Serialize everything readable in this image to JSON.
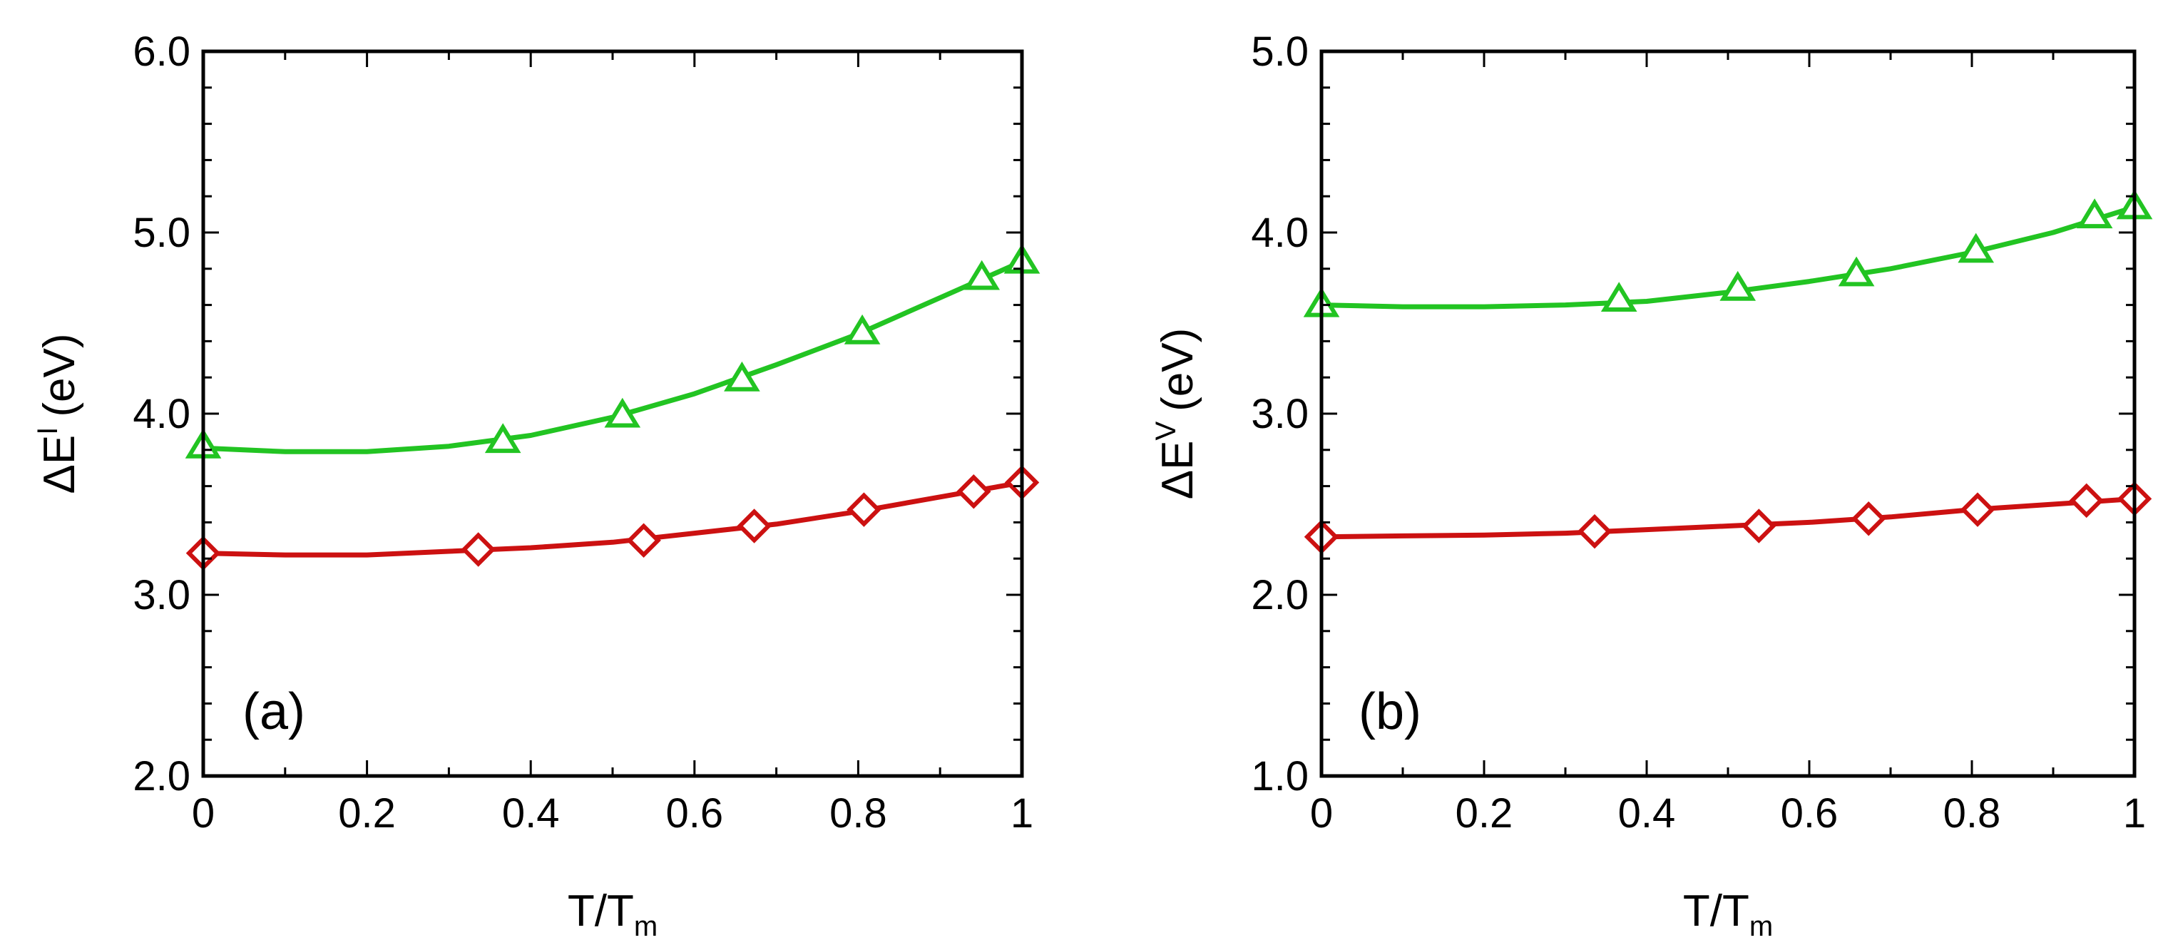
{
  "chart_data": [
    {
      "type": "line",
      "panel_label": "(a)",
      "ylabel": "ΔE",
      "ylabel_superscript": "I",
      "ylabel_units": "(eV)",
      "xlabel": "T/T",
      "xlabel_subscript": "m",
      "xlim": [
        0,
        1
      ],
      "ylim": [
        2.0,
        6.0
      ],
      "xticks": [
        "0",
        "0.2",
        "0.4",
        "0.6",
        "0.8",
        "1"
      ],
      "yticks": [
        "2.0",
        "3.0",
        "4.0",
        "5.0",
        "6.0"
      ],
      "grid": false,
      "series": [
        {
          "name": "triangle series",
          "color": "#22c422",
          "marker": "triangle",
          "x": [
            0.0,
            0.366,
            0.512,
            0.658,
            0.805,
            0.951,
            1.0
          ],
          "y": [
            3.82,
            3.85,
            3.99,
            4.19,
            4.45,
            4.75,
            4.84
          ],
          "curve": [
            [
              0.0,
              3.81
            ],
            [
              0.1,
              3.79
            ],
            [
              0.2,
              3.79
            ],
            [
              0.3,
              3.82
            ],
            [
              0.4,
              3.88
            ],
            [
              0.5,
              3.98
            ],
            [
              0.6,
              4.11
            ],
            [
              0.7,
              4.27
            ],
            [
              0.8,
              4.44
            ],
            [
              0.9,
              4.64
            ],
            [
              1.0,
              4.84
            ]
          ]
        },
        {
          "name": "diamond series",
          "color": "#cc1111",
          "marker": "diamond",
          "x": [
            0.0,
            0.336,
            0.538,
            0.673,
            0.807,
            0.941,
            1.0
          ],
          "y": [
            3.23,
            3.25,
            3.3,
            3.38,
            3.47,
            3.57,
            3.62
          ],
          "curve": [
            [
              0.0,
              3.23
            ],
            [
              0.1,
              3.22
            ],
            [
              0.2,
              3.22
            ],
            [
              0.3,
              3.24
            ],
            [
              0.4,
              3.26
            ],
            [
              0.5,
              3.29
            ],
            [
              0.6,
              3.34
            ],
            [
              0.7,
              3.39
            ],
            [
              0.8,
              3.46
            ],
            [
              0.9,
              3.54
            ],
            [
              1.0,
              3.62
            ]
          ]
        }
      ]
    },
    {
      "type": "line",
      "panel_label": "(b)",
      "ylabel": "ΔE",
      "ylabel_superscript": "V",
      "ylabel_units": "(eV)",
      "xlabel": "T/T",
      "xlabel_subscript": "m",
      "xlim": [
        0,
        1
      ],
      "ylim": [
        1.0,
        5.0
      ],
      "xticks": [
        "0",
        "0.2",
        "0.4",
        "0.6",
        "0.8",
        "1"
      ],
      "yticks": [
        "1.0",
        "2.0",
        "3.0",
        "4.0",
        "5.0"
      ],
      "grid": false,
      "series": [
        {
          "name": "triangle series",
          "color": "#22c422",
          "marker": "triangle",
          "x": [
            0.0,
            0.366,
            0.512,
            0.658,
            0.805,
            0.951,
            1.0
          ],
          "y": [
            3.6,
            3.63,
            3.69,
            3.77,
            3.9,
            4.09,
            4.14
          ],
          "curve": [
            [
              0.0,
              3.6
            ],
            [
              0.1,
              3.59
            ],
            [
              0.2,
              3.59
            ],
            [
              0.3,
              3.6
            ],
            [
              0.4,
              3.62
            ],
            [
              0.5,
              3.67
            ],
            [
              0.6,
              3.73
            ],
            [
              0.7,
              3.8
            ],
            [
              0.8,
              3.89
            ],
            [
              0.9,
              4.0
            ],
            [
              1.0,
              4.14
            ]
          ]
        },
        {
          "name": "diamond series",
          "color": "#cc1111",
          "marker": "diamond",
          "x": [
            0.0,
            0.336,
            0.538,
            0.673,
            0.807,
            0.941,
            1.0
          ],
          "y": [
            2.32,
            2.35,
            2.38,
            2.42,
            2.47,
            2.52,
            2.53
          ],
          "curve": [
            [
              0.0,
              2.32
            ],
            [
              0.1,
              2.325
            ],
            [
              0.2,
              2.33
            ],
            [
              0.3,
              2.34
            ],
            [
              0.4,
              2.36
            ],
            [
              0.5,
              2.38
            ],
            [
              0.6,
              2.4
            ],
            [
              0.7,
              2.43
            ],
            [
              0.8,
              2.47
            ],
            [
              0.9,
              2.5
            ],
            [
              1.0,
              2.53
            ]
          ]
        }
      ]
    }
  ]
}
